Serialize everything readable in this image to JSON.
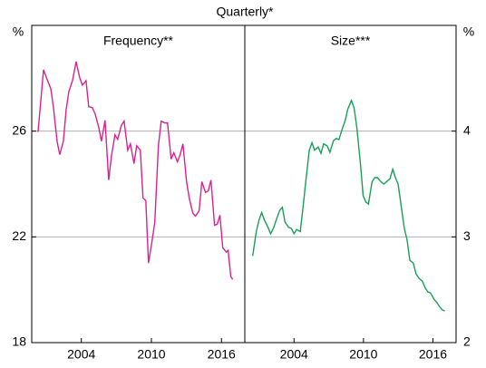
{
  "subtitle": "Quarterly*",
  "chart_data": [
    {
      "type": "line",
      "title": "Frequency**",
      "y_unit": "%",
      "yaxis_side": "left",
      "color": "#d6238f",
      "xlim": [
        1999.75,
        2018
      ],
      "xticks": [
        2004,
        2010,
        2016
      ],
      "ylim": [
        18,
        30
      ],
      "yticks": [
        18,
        22,
        26
      ],
      "grid": true,
      "x": [
        2000.29,
        2000.76,
        2001.07,
        2001.38,
        2001.61,
        2001.92,
        2002.15,
        2002.46,
        2002.7,
        2002.93,
        2003.24,
        2003.55,
        2003.86,
        2004.09,
        2004.4,
        2004.63,
        2004.94,
        2005.18,
        2005.49,
        2005.72,
        2006.03,
        2006.34,
        2006.57,
        2006.88,
        2007.11,
        2007.42,
        2007.66,
        2007.97,
        2008.2,
        2008.51,
        2008.74,
        2009.05,
        2009.28,
        2009.52,
        2009.75,
        2010.06,
        2010.29,
        2010.6,
        2010.84,
        2011.15,
        2011.38,
        2011.69,
        2011.92,
        2012.23,
        2012.46,
        2012.7,
        2013.01,
        2013.24,
        2013.55,
        2013.78,
        2014.09,
        2014.32,
        2014.63,
        2014.87,
        2015.1,
        2015.41,
        2015.64,
        2015.87,
        2016.11,
        2016.42,
        2016.57,
        2016.8,
        2016.96
      ],
      "values": [
        25.97,
        28.32,
        27.95,
        27.61,
        26.89,
        25.62,
        25.11,
        25.62,
        26.82,
        27.5,
        27.91,
        28.63,
        28.02,
        27.74,
        27.91,
        26.92,
        26.89,
        26.65,
        26.14,
        25.62,
        26.41,
        24.15,
        25.04,
        25.86,
        25.69,
        26.21,
        26.38,
        25.28,
        25.52,
        24.77,
        25.45,
        25.28,
        23.47,
        23.37,
        21.01,
        21.86,
        22.55,
        25.45,
        26.38,
        26.31,
        26.31,
        24.94,
        25.18,
        24.84,
        25.11,
        25.52,
        24.09,
        23.47,
        22.89,
        22.79,
        22.99,
        24.09,
        23.68,
        23.74,
        24.15,
        22.44,
        22.48,
        22.82,
        21.59,
        21.42,
        21.49,
        20.5,
        20.39
      ]
    },
    {
      "type": "line",
      "title": "Size***",
      "y_unit": "%",
      "yaxis_side": "right",
      "color": "#17a058",
      "xlim": [
        1999.75,
        2018
      ],
      "xticks": [
        2004,
        2010,
        2016
      ],
      "ylim": [
        2,
        5
      ],
      "yticks": [
        2,
        3,
        4
      ],
      "grid": true,
      "x": [
        2000.43,
        2000.74,
        2000.98,
        2001.21,
        2001.44,
        2001.75,
        2001.98,
        2002.22,
        2002.53,
        2002.76,
        2002.99,
        2003.22,
        2003.53,
        2003.77,
        2004.0,
        2004.23,
        2004.54,
        2004.78,
        2005.01,
        2005.32,
        2005.55,
        2005.78,
        2006.09,
        2006.33,
        2006.56,
        2006.87,
        2007.1,
        2007.41,
        2007.64,
        2007.88,
        2008.19,
        2008.42,
        2008.65,
        2008.96,
        2009.19,
        2009.43,
        2009.74,
        2009.97,
        2010.2,
        2010.43,
        2010.74,
        2010.98,
        2011.21,
        2011.52,
        2011.75,
        2011.98,
        2012.29,
        2012.53,
        2012.76,
        2012.99,
        2013.3,
        2013.53,
        2013.77,
        2014.0,
        2014.31,
        2014.54,
        2014.78,
        2015.09,
        2015.32,
        2015.56,
        2015.79,
        2016.1,
        2016.33,
        2016.57,
        2016.8,
        2017.03
      ],
      "values": [
        2.82,
        3.05,
        3.16,
        3.23,
        3.16,
        3.09,
        3.03,
        3.08,
        3.18,
        3.25,
        3.28,
        3.14,
        3.09,
        3.08,
        3.03,
        3.07,
        3.05,
        3.28,
        3.52,
        3.82,
        3.89,
        3.82,
        3.85,
        3.79,
        3.88,
        3.86,
        3.8,
        3.91,
        3.93,
        3.92,
        4.03,
        4.1,
        4.21,
        4.29,
        4.22,
        4.03,
        3.69,
        3.39,
        3.33,
        3.31,
        3.52,
        3.56,
        3.56,
        3.52,
        3.5,
        3.52,
        3.55,
        3.64,
        3.56,
        3.5,
        3.26,
        3.08,
        2.97,
        2.78,
        2.75,
        2.65,
        2.61,
        2.58,
        2.52,
        2.48,
        2.47,
        2.41,
        2.38,
        2.34,
        2.31,
        2.3
      ]
    }
  ]
}
